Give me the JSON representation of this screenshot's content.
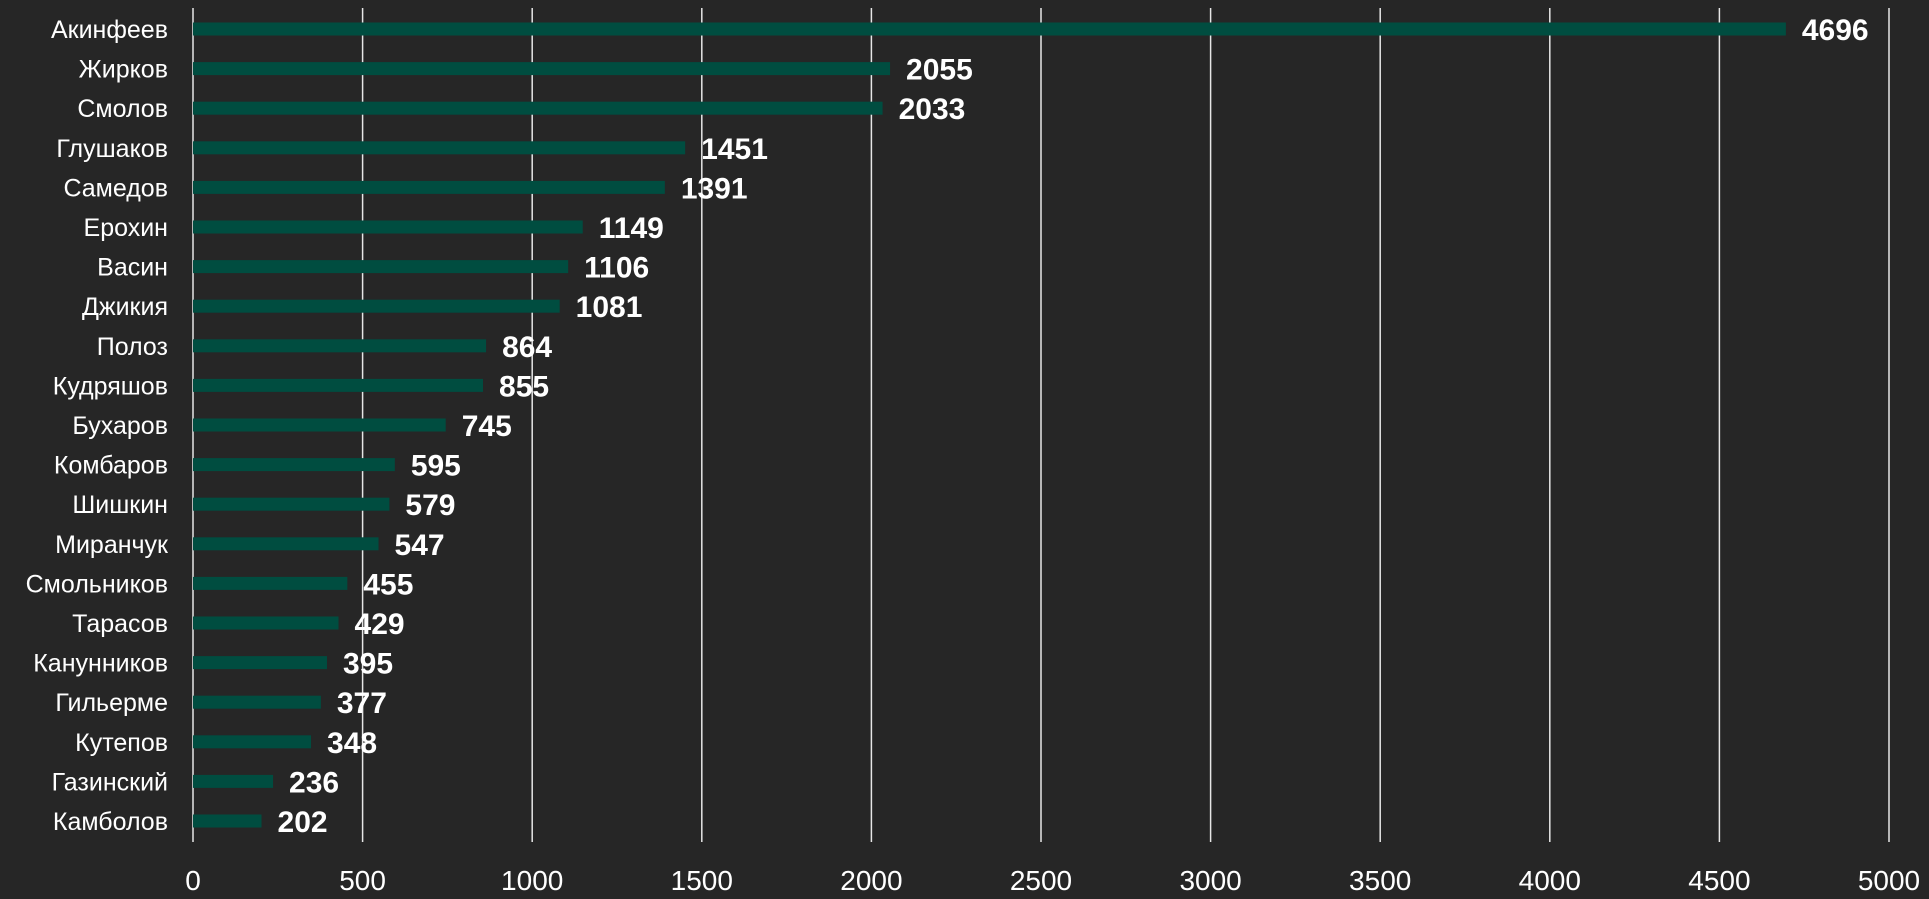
{
  "chart_data": {
    "type": "bar",
    "orientation": "horizontal",
    "title": "",
    "xlabel": "",
    "ylabel": "",
    "categories": [
      "Акинфеев",
      "Жирков",
      "Смолов",
      "Глушаков",
      "Самедов",
      "Ерохин",
      "Васин",
      "Джикия",
      "Полоз",
      "Кудряшов",
      "Бухаров",
      "Комбаров",
      "Шишкин",
      "Миранчук",
      "Смольников",
      "Тарасов",
      "Канунников",
      "Гильерме",
      "Кутепов",
      "Газинский",
      "Камболов"
    ],
    "values": [
      4696,
      2055,
      2033,
      1451,
      1391,
      1149,
      1106,
      1081,
      864,
      855,
      745,
      595,
      579,
      547,
      455,
      429,
      395,
      377,
      348,
      236,
      202
    ],
    "value_labels": [
      "4696",
      "2055",
      "2033",
      "1451",
      "1391",
      "1149",
      "1106",
      "1081",
      "864",
      "855",
      "745",
      "595",
      "579",
      "547",
      "455",
      "429",
      "395",
      "377",
      "348",
      "236",
      "202"
    ],
    "xlim": [
      0,
      5000
    ],
    "x_ticks": [
      0,
      500,
      1000,
      1500,
      2000,
      2500,
      3000,
      3500,
      4000,
      4500,
      5000
    ],
    "x_tick_labels": [
      "0",
      "500",
      "1000",
      "1500",
      "2000",
      "2500",
      "3000",
      "3500",
      "4000",
      "4500",
      "5000"
    ],
    "grid": "vertical",
    "legend": "none",
    "colors": {
      "background": "#262626",
      "bar": "#004d40",
      "grid": "#e6e6e6",
      "text": "#ffffff"
    }
  }
}
